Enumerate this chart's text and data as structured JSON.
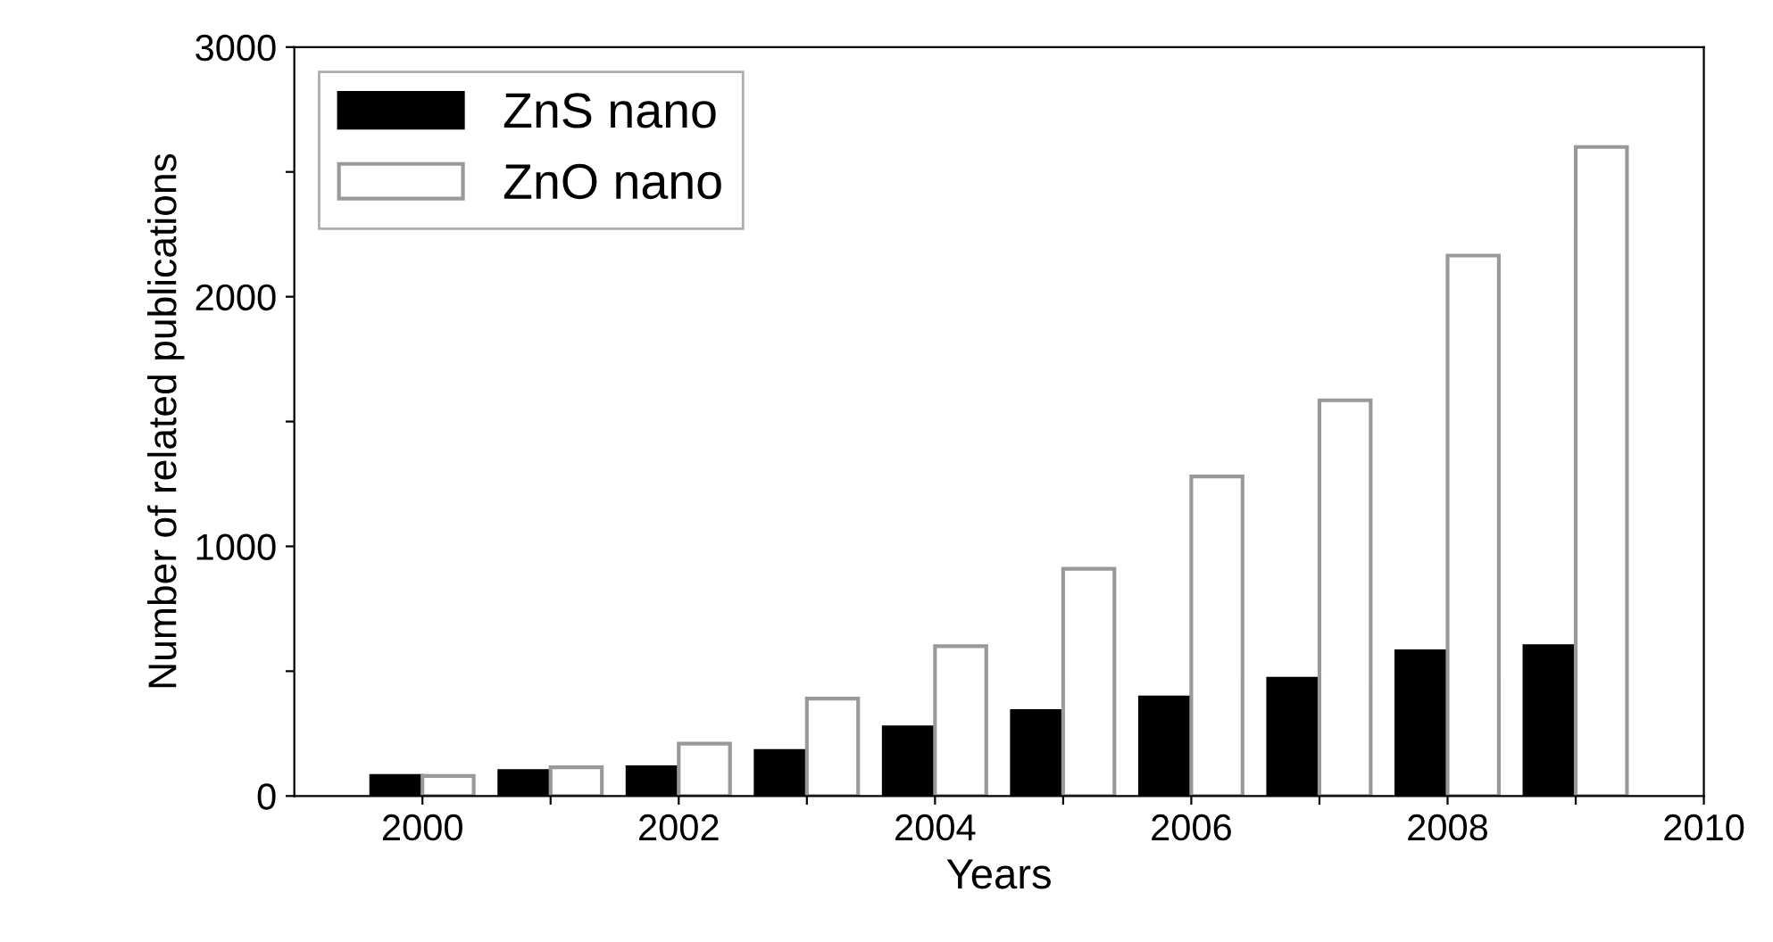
{
  "chart_data": {
    "type": "bar",
    "xlabel": "Years",
    "ylabel": "Number of related publications",
    "x": [
      2000,
      2001,
      2002,
      2003,
      2004,
      2005,
      2006,
      2007,
      2008,
      2009
    ],
    "series": [
      {
        "name": "ZnS nano",
        "color": "#000000",
        "values": [
          80,
          100,
          115,
          180,
          275,
          340,
          395,
          470,
          580,
          600
        ]
      },
      {
        "name": "ZnO nano",
        "color": "#ffffff",
        "values": [
          80,
          115,
          210,
          390,
          600,
          910,
          1280,
          1585,
          2165,
          2600
        ]
      }
    ],
    "xlim": [
      1999,
      2010
    ],
    "xticks": [
      2000,
      {
        "value": 2001,
        "label": null
      },
      2002,
      {
        "value": 2003,
        "label": null
      },
      2004,
      {
        "value": 2005,
        "label": null
      },
      2006,
      {
        "value": 2007,
        "label": null
      },
      2008,
      {
        "value": 2009,
        "label": null
      },
      2010
    ],
    "ylim": [
      0,
      3000
    ],
    "yticks": [
      0,
      {
        "value": 500,
        "label": null
      },
      1000,
      {
        "value": 1500,
        "label": null
      },
      2000,
      {
        "value": 2500,
        "label": null
      },
      3000
    ],
    "legend": "top left",
    "grid": false
  }
}
